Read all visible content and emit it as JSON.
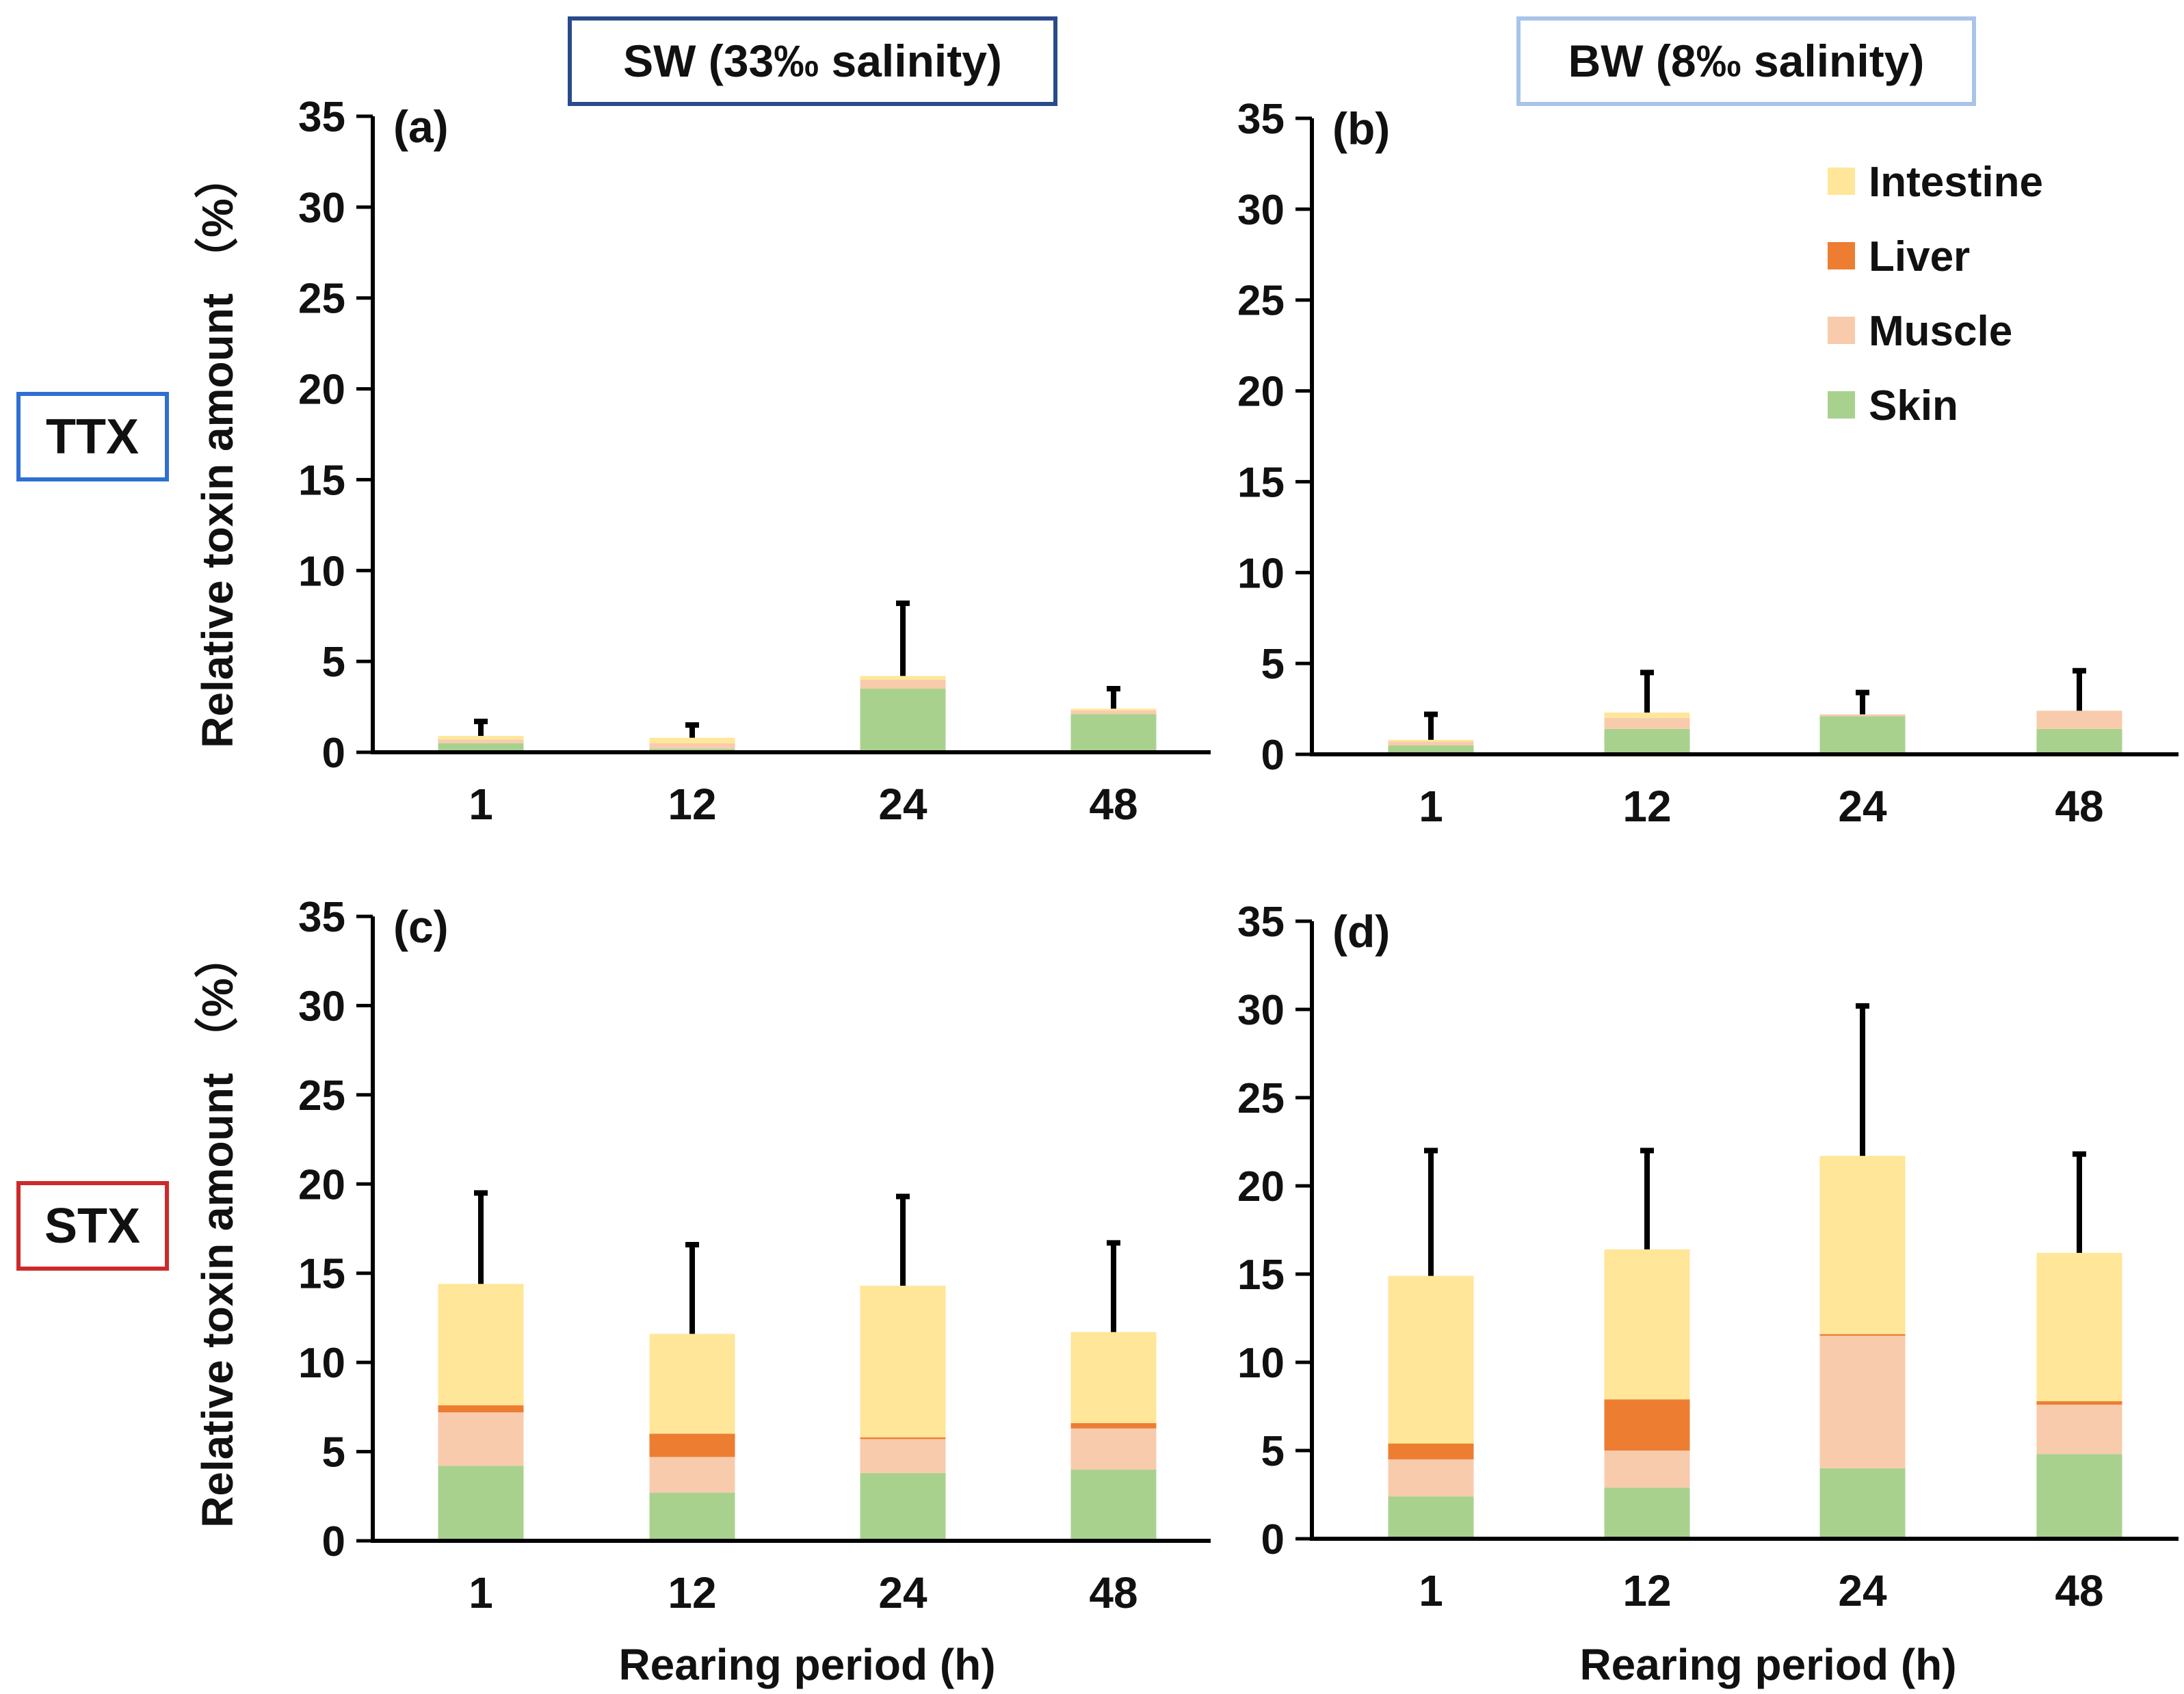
{
  "header": {
    "sw_label": "SW (33‰ salinity)",
    "bw_label": "BW (8‰ salinity)",
    "sw_border_color": "#2b4a8c",
    "bw_border_color": "#a9c4e8"
  },
  "rows": {
    "ttx_label": "TTX",
    "stx_label": "STX",
    "ttx_border_color": "#2f6fd1",
    "stx_border_color": "#cc2a2a"
  },
  "legend": {
    "items": [
      {
        "name": "Intestine",
        "color": "#ffe699"
      },
      {
        "name": "Liver",
        "color": "#ed7d31"
      },
      {
        "name": "Muscle",
        "color": "#f8cbad"
      },
      {
        "name": "Skin",
        "color": "#a9d18e"
      }
    ]
  },
  "chart_data": [
    {
      "type": "bar",
      "stacked": true,
      "panel_label": "(a)",
      "toxin": "TTX",
      "condition": "SW (33‰ salinity)",
      "categories": [
        "1",
        "12",
        "24",
        "48"
      ],
      "series": [
        {
          "name": "Skin",
          "values": [
            0.5,
            0.2,
            3.5,
            2.1
          ]
        },
        {
          "name": "Muscle",
          "values": [
            0.2,
            0.3,
            0.5,
            0.2
          ]
        },
        {
          "name": "Liver",
          "values": [
            0.0,
            0.0,
            0.0,
            0.0
          ]
        },
        {
          "name": "Intestine",
          "values": [
            0.2,
            0.3,
            0.2,
            0.1
          ]
        }
      ],
      "error_top": [
        1.7,
        1.5,
        8.2,
        3.5
      ],
      "ylabel": "Relative toxin amount （%）",
      "xlabel": "",
      "ylim": [
        0,
        35
      ],
      "yticks": [
        0,
        5,
        10,
        15,
        20,
        25,
        30,
        35
      ]
    },
    {
      "type": "bar",
      "stacked": true,
      "panel_label": "(b)",
      "toxin": "TTX",
      "condition": "BW (8‰ salinity)",
      "categories": [
        "1",
        "12",
        "24",
        "48"
      ],
      "series": [
        {
          "name": "Skin",
          "values": [
            0.5,
            1.4,
            2.1,
            1.4
          ]
        },
        {
          "name": "Muscle",
          "values": [
            0.2,
            0.6,
            0.1,
            1.0
          ]
        },
        {
          "name": "Liver",
          "values": [
            0.0,
            0.0,
            0.0,
            0.0
          ]
        },
        {
          "name": "Intestine",
          "values": [
            0.1,
            0.3,
            0.0,
            0.0
          ]
        }
      ],
      "error_top": [
        2.2,
        4.5,
        3.4,
        4.6
      ],
      "ylabel": "",
      "xlabel": "",
      "ylim": [
        0,
        35
      ],
      "yticks": [
        0,
        5,
        10,
        15,
        20,
        25,
        30,
        35
      ]
    },
    {
      "type": "bar",
      "stacked": true,
      "panel_label": "(c)",
      "toxin": "STX",
      "condition": "SW (33‰ salinity)",
      "categories": [
        "1",
        "12",
        "24",
        "48"
      ],
      "series": [
        {
          "name": "Skin",
          "values": [
            4.2,
            2.7,
            3.8,
            4.0
          ]
        },
        {
          "name": "Muscle",
          "values": [
            3.0,
            2.0,
            1.9,
            2.3
          ]
        },
        {
          "name": "Liver",
          "values": [
            0.4,
            1.3,
            0.1,
            0.3
          ]
        },
        {
          "name": "Intestine",
          "values": [
            6.8,
            5.6,
            8.5,
            5.1
          ]
        }
      ],
      "error_top": [
        19.5,
        16.6,
        19.3,
        16.7
      ],
      "ylabel": "Relative toxin amount （%）",
      "xlabel": "Rearing period (h)",
      "ylim": [
        0,
        35
      ],
      "yticks": [
        0,
        5,
        10,
        15,
        20,
        25,
        30,
        35
      ]
    },
    {
      "type": "bar",
      "stacked": true,
      "panel_label": "(d)",
      "toxin": "STX",
      "condition": "BW (8‰ salinity)",
      "categories": [
        "1",
        "12",
        "24",
        "48"
      ],
      "series": [
        {
          "name": "Skin",
          "values": [
            2.4,
            2.9,
            4.0,
            4.8
          ]
        },
        {
          "name": "Muscle",
          "values": [
            2.1,
            2.1,
            7.5,
            2.8
          ]
        },
        {
          "name": "Liver",
          "values": [
            0.9,
            2.9,
            0.1,
            0.2
          ]
        },
        {
          "name": "Intestine",
          "values": [
            9.5,
            8.5,
            10.1,
            8.4
          ]
        }
      ],
      "error_top": [
        22.0,
        22.0,
        30.2,
        21.8
      ],
      "ylabel": "",
      "xlabel": "Rearing period (h)",
      "ylim": [
        0,
        35
      ],
      "yticks": [
        0,
        5,
        10,
        15,
        20,
        25,
        30,
        35
      ]
    }
  ]
}
